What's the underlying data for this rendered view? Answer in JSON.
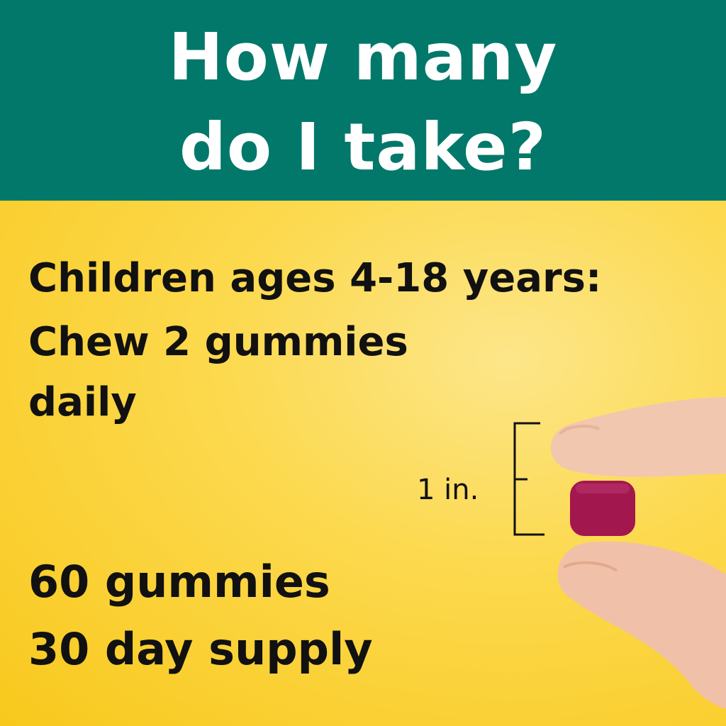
{
  "header": {
    "line1": "How many",
    "line2": "do I take?",
    "color": "#02786a"
  },
  "dosage": {
    "line1": "Children ages 4-18 years:",
    "line2": "Chew 2 gummies",
    "line3": "daily"
  },
  "size_label": "1 in.",
  "supply": {
    "line1": "60 gummies",
    "line2": "30 day supply"
  },
  "colors": {
    "background": "#fcd94e",
    "gummy": "#a3174f",
    "skin": "#f2c7b0"
  }
}
